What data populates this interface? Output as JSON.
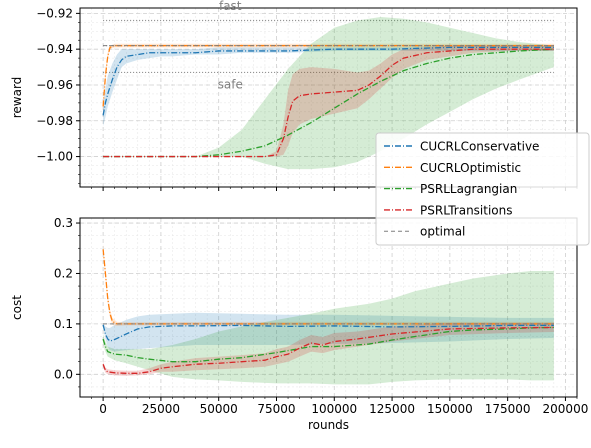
{
  "chart_data": [
    {
      "type": "line",
      "panel": "top",
      "ylabel": "reward",
      "xlabel": "",
      "xlim": [
        -10000,
        205000
      ],
      "ylim": [
        -1.017,
        -0.917
      ],
      "yticks": [
        -1.0,
        -0.98,
        -0.96,
        -0.94,
        -0.92
      ],
      "ytick_labels": [
        "−1.00",
        "−0.98",
        "−0.96",
        "−0.94",
        "−0.92"
      ],
      "grid": true,
      "annotations": [
        {
          "text": "fast",
          "x": 55000,
          "y": -0.918
        },
        {
          "text": "safe",
          "x": 55000,
          "y": -0.962
        }
      ],
      "reference_lines": [
        {
          "y": -0.924,
          "x_start": 0,
          "x_end": 195000,
          "style": "dotted",
          "color": "#888888"
        },
        {
          "y": -0.938,
          "x_start": 0,
          "x_end": 195000,
          "style": "dotted",
          "color": "#888888"
        },
        {
          "y": -0.953,
          "x_start": 0,
          "x_end": 195000,
          "style": "dotted",
          "color": "#888888"
        }
      ],
      "series": [
        {
          "name": "CUCRLConservative",
          "color": "#1f77b4",
          "style": "dashdot",
          "x": [
            0,
            1000,
            2000,
            4000,
            6000,
            8000,
            10000,
            15000,
            20000,
            25000,
            30000,
            40000,
            50000,
            60000,
            80000,
            100000,
            125000,
            150000,
            175000,
            195000
          ],
          "y": [
            -0.977,
            -0.97,
            -0.965,
            -0.957,
            -0.95,
            -0.946,
            -0.944,
            -0.943,
            -0.942,
            -0.942,
            -0.942,
            -0.942,
            -0.941,
            -0.941,
            -0.941,
            -0.94,
            -0.94,
            -0.939,
            -0.939,
            -0.939
          ],
          "band_low": [
            -0.983,
            -0.978,
            -0.972,
            -0.964,
            -0.957,
            -0.95,
            -0.948,
            -0.946,
            -0.945,
            -0.944,
            -0.944,
            -0.943,
            -0.943,
            -0.942,
            -0.942,
            -0.941,
            -0.941,
            -0.941,
            -0.941,
            -0.941
          ],
          "band_high": [
            -0.971,
            -0.962,
            -0.955,
            -0.948,
            -0.943,
            -0.94,
            -0.94,
            -0.94,
            -0.94,
            -0.94,
            -0.94,
            -0.94,
            -0.939,
            -0.939,
            -0.939,
            -0.939,
            -0.939,
            -0.938,
            -0.938,
            -0.938
          ]
        },
        {
          "name": "CUCRLOptimistic",
          "color": "#ff7f0e",
          "style": "dashdot",
          "x": [
            0,
            1000,
            2000,
            3000,
            5000,
            10000,
            50000,
            100000,
            150000,
            195000
          ],
          "y": [
            -0.972,
            -0.955,
            -0.944,
            -0.939,
            -0.938,
            -0.938,
            -0.938,
            -0.938,
            -0.938,
            -0.938
          ],
          "band_low": [
            -0.975,
            -0.958,
            -0.946,
            -0.94,
            -0.939,
            -0.939,
            -0.939,
            -0.939,
            -0.939,
            -0.939
          ],
          "band_high": [
            -0.969,
            -0.952,
            -0.942,
            -0.938,
            -0.937,
            -0.937,
            -0.937,
            -0.937,
            -0.937,
            -0.937
          ]
        },
        {
          "name": "PSRLLagrangian",
          "color": "#2ca02c",
          "style": "dashdot",
          "x": [
            0,
            20000,
            40000,
            50000,
            60000,
            70000,
            80000,
            90000,
            100000,
            110000,
            120000,
            130000,
            140000,
            150000,
            160000,
            170000,
            180000,
            195000
          ],
          "y": [
            -1.0,
            -1.0,
            -1.0,
            -0.999,
            -0.997,
            -0.994,
            -0.988,
            -0.981,
            -0.973,
            -0.965,
            -0.958,
            -0.952,
            -0.948,
            -0.945,
            -0.943,
            -0.942,
            -0.941,
            -0.94
          ],
          "band_low": [
            -1.0,
            -1.0,
            -1.0,
            -1.0,
            -1.0,
            -1.004,
            -1.007,
            -1.007,
            -1.006,
            -1.003,
            -0.997,
            -0.99,
            -0.982,
            -0.975,
            -0.968,
            -0.962,
            -0.957,
            -0.95
          ],
          "band_high": [
            -1.0,
            -1.0,
            -1.0,
            -0.995,
            -0.985,
            -0.968,
            -0.951,
            -0.937,
            -0.928,
            -0.924,
            -0.922,
            -0.923,
            -0.925,
            -0.928,
            -0.931,
            -0.934,
            -0.936,
            -0.938
          ]
        },
        {
          "name": "PSRLTransitions",
          "color": "#d62728",
          "style": "dashdot",
          "x": [
            0,
            20000,
            40000,
            60000,
            70000,
            75000,
            78000,
            80000,
            82000,
            85000,
            90000,
            100000,
            110000,
            115000,
            120000,
            125000,
            130000,
            140000,
            150000,
            160000,
            175000,
            195000
          ],
          "y": [
            -1.0,
            -1.0,
            -1.0,
            -1.0,
            -1.0,
            -0.999,
            -0.99,
            -0.978,
            -0.969,
            -0.966,
            -0.965,
            -0.964,
            -0.963,
            -0.96,
            -0.955,
            -0.949,
            -0.945,
            -0.942,
            -0.941,
            -0.94,
            -0.94,
            -0.94
          ],
          "band_low": [
            -1.0,
            -1.0,
            -1.0,
            -1.0,
            -1.0,
            -1.0,
            -0.999,
            -0.994,
            -0.987,
            -0.982,
            -0.979,
            -0.976,
            -0.973,
            -0.968,
            -0.962,
            -0.956,
            -0.951,
            -0.946,
            -0.944,
            -0.942,
            -0.941,
            -0.941
          ],
          "band_high": [
            -1.0,
            -1.0,
            -1.0,
            -1.0,
            -1.0,
            -0.997,
            -0.982,
            -0.963,
            -0.954,
            -0.951,
            -0.95,
            -0.951,
            -0.953,
            -0.952,
            -0.948,
            -0.943,
            -0.94,
            -0.939,
            -0.938,
            -0.938,
            -0.938,
            -0.938
          ]
        },
        {
          "name": "optimal",
          "color": "#7f7f7f",
          "style": "dashed",
          "x": [
            0,
            195000
          ],
          "y": [
            -0.938,
            -0.938
          ]
        }
      ],
      "legend": {
        "position": "bottom-right"
      }
    },
    {
      "type": "line",
      "panel": "bottom",
      "ylabel": "cost",
      "xlabel": "rounds",
      "xlim": [
        -10000,
        205000
      ],
      "ylim": [
        -0.045,
        0.31
      ],
      "yticks": [
        0.0,
        0.1,
        0.2,
        0.3
      ],
      "ytick_labels": [
        "0.0",
        "0.1",
        "0.2",
        "0.3"
      ],
      "xticks": [
        0,
        25000,
        50000,
        75000,
        100000,
        125000,
        150000,
        175000,
        200000
      ],
      "xtick_labels": [
        "0",
        "25000",
        "50000",
        "75000",
        "100000",
        "125000",
        "150000",
        "175000",
        "200000"
      ],
      "grid": true,
      "series": [
        {
          "name": "CUCRLConservative",
          "color": "#1f77b4",
          "style": "dashdot",
          "x": [
            0,
            1000,
            2000,
            3000,
            5000,
            10000,
            15000,
            20000,
            30000,
            40000,
            60000,
            80000,
            100000,
            125000,
            150000,
            175000,
            195000
          ],
          "y": [
            0.098,
            0.08,
            0.07,
            0.066,
            0.069,
            0.08,
            0.09,
            0.094,
            0.096,
            0.096,
            0.097,
            0.095,
            0.096,
            0.094,
            0.095,
            0.097,
            0.097
          ],
          "band_low": [
            0.095,
            0.07,
            0.055,
            0.048,
            0.045,
            0.048,
            0.05,
            0.052,
            0.055,
            0.058,
            0.058,
            0.058,
            0.06,
            0.062,
            0.065,
            0.07,
            0.072
          ],
          "band_high": [
            0.101,
            0.095,
            0.092,
            0.092,
            0.098,
            0.108,
            0.115,
            0.118,
            0.12,
            0.122,
            0.12,
            0.118,
            0.118,
            0.116,
            0.114,
            0.112,
            0.112
          ]
        },
        {
          "name": "CUCRLOptimistic",
          "color": "#ff7f0e",
          "style": "dashdot",
          "x": [
            0,
            1000,
            2000,
            3000,
            4000,
            6000,
            10000,
            50000,
            100000,
            150000,
            195000
          ],
          "y": [
            0.248,
            0.2,
            0.15,
            0.12,
            0.105,
            0.1,
            0.1,
            0.1,
            0.1,
            0.1,
            0.1
          ],
          "band_low": [
            0.238,
            0.19,
            0.14,
            0.112,
            0.098,
            0.096,
            0.097,
            0.097,
            0.097,
            0.097,
            0.097
          ],
          "band_high": [
            0.258,
            0.21,
            0.16,
            0.128,
            0.112,
            0.104,
            0.103,
            0.104,
            0.104,
            0.104,
            0.104
          ]
        },
        {
          "name": "PSRLLagrangian",
          "color": "#2ca02c",
          "style": "dashdot",
          "x": [
            0,
            1000,
            2000,
            5000,
            10000,
            15000,
            20000,
            30000,
            40000,
            50000,
            60000,
            75000,
            90000,
            100000,
            115000,
            125000,
            135000,
            150000,
            160000,
            175000,
            185000,
            195000
          ],
          "y": [
            0.07,
            0.055,
            0.045,
            0.04,
            0.038,
            0.033,
            0.03,
            0.025,
            0.025,
            0.03,
            0.033,
            0.043,
            0.055,
            0.055,
            0.06,
            0.068,
            0.075,
            0.085,
            0.088,
            0.09,
            0.092,
            0.093
          ],
          "band_low": [
            0.06,
            0.045,
            0.035,
            0.028,
            0.022,
            0.015,
            0.008,
            -0.005,
            -0.01,
            -0.012,
            -0.015,
            -0.018,
            -0.018,
            -0.02,
            -0.02,
            -0.015,
            -0.012,
            -0.01,
            -0.01,
            -0.01,
            -0.012,
            -0.012
          ],
          "band_high": [
            0.08,
            0.065,
            0.055,
            0.05,
            0.05,
            0.05,
            0.05,
            0.058,
            0.07,
            0.085,
            0.095,
            0.108,
            0.12,
            0.13,
            0.14,
            0.15,
            0.165,
            0.18,
            0.19,
            0.2,
            0.205,
            0.205
          ]
        },
        {
          "name": "PSRLTransitions",
          "color": "#d62728",
          "style": "dashdot",
          "x": [
            0,
            1000,
            2000,
            5000,
            10000,
            15000,
            20000,
            25000,
            30000,
            40000,
            50000,
            60000,
            70000,
            75000,
            80000,
            85000,
            90000,
            95000,
            100000,
            110000,
            125000,
            150000,
            175000,
            195000
          ],
          "y": [
            0.02,
            0.008,
            0.005,
            0.003,
            0.002,
            0.002,
            0.005,
            0.012,
            0.015,
            0.02,
            0.022,
            0.025,
            0.028,
            0.035,
            0.04,
            0.052,
            0.062,
            0.058,
            0.065,
            0.07,
            0.08,
            0.09,
            0.092,
            0.093
          ],
          "band_low": [
            0.015,
            0.003,
            0.0,
            -0.002,
            -0.003,
            -0.002,
            0.0,
            0.005,
            0.005,
            0.008,
            0.01,
            0.012,
            0.015,
            0.02,
            0.025,
            0.035,
            0.045,
            0.042,
            0.048,
            0.055,
            0.065,
            0.078,
            0.082,
            0.084
          ],
          "band_high": [
            0.025,
            0.013,
            0.01,
            0.008,
            0.007,
            0.007,
            0.012,
            0.02,
            0.025,
            0.032,
            0.035,
            0.038,
            0.042,
            0.05,
            0.055,
            0.068,
            0.078,
            0.074,
            0.082,
            0.085,
            0.095,
            0.102,
            0.102,
            0.102
          ]
        },
        {
          "name": "optimal",
          "color": "#7f7f7f",
          "style": "dashed",
          "x": [
            0,
            195000
          ],
          "y": [
            0.1,
            0.1
          ]
        }
      ]
    }
  ]
}
